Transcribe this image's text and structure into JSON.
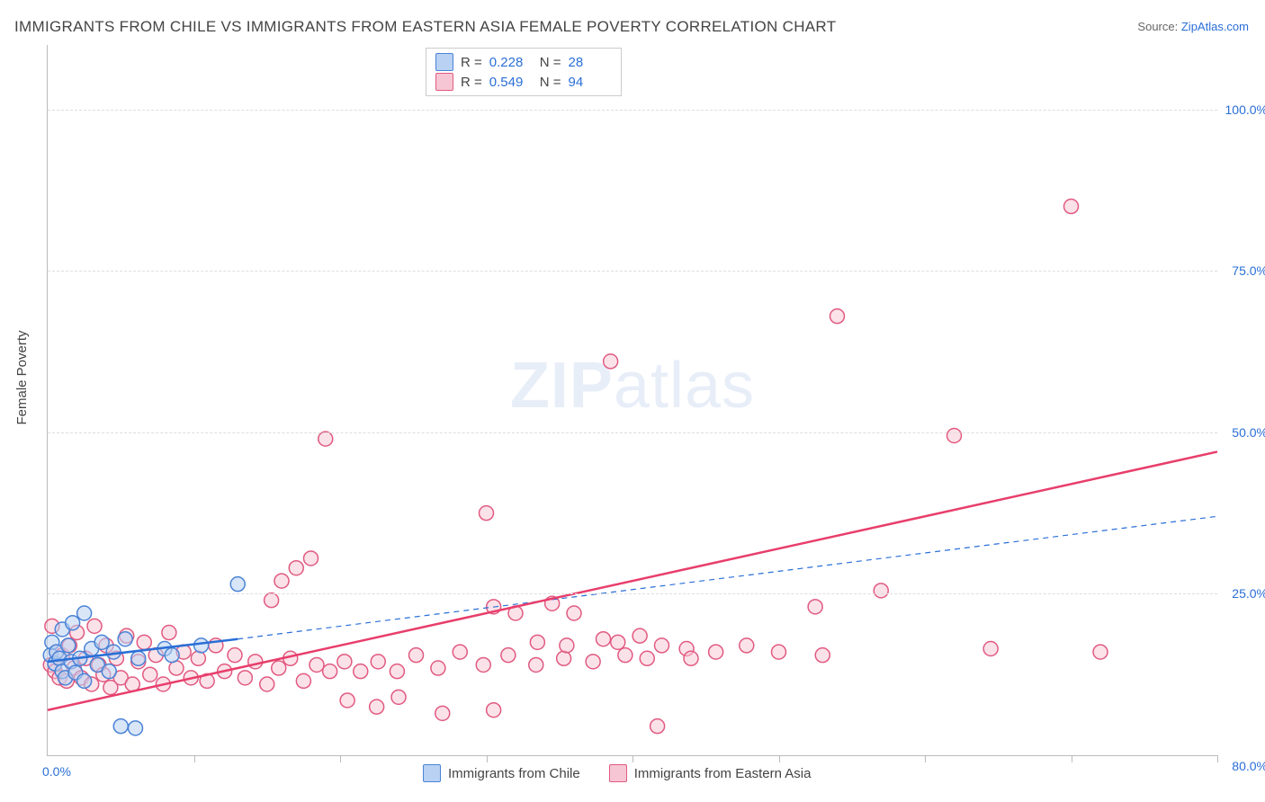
{
  "title": "IMMIGRANTS FROM CHILE VS IMMIGRANTS FROM EASTERN ASIA FEMALE POVERTY CORRELATION CHART",
  "source_label": "Source:",
  "source_value": "ZipAtlas.com",
  "y_axis_label": "Female Poverty",
  "watermark": {
    "part1": "ZIP",
    "part2": "atlas"
  },
  "x_origin_label": "0.0%",
  "x_max_label": "80.0%",
  "bottom_legend": {
    "series1": "Immigrants from Chile",
    "series2": "Immigrants from Eastern Asia"
  },
  "chart": {
    "type": "scatter",
    "xlim": [
      0,
      80
    ],
    "ylim": [
      0,
      110
    ],
    "y_ticks": [
      25,
      50,
      75,
      100
    ],
    "y_tick_labels": [
      "25.0%",
      "50.0%",
      "75.0%",
      "100.0%"
    ],
    "x_ticks": [
      10,
      20,
      30,
      40,
      50,
      60,
      70,
      80
    ],
    "marker_radius": 8,
    "marker_stroke_width": 1.5,
    "background_color": "#ffffff",
    "grid_color": "#dddddd",
    "series": [
      {
        "name": "Immigrants from Chile",
        "fill": "#b9d1f3",
        "stroke": "#4a83d6",
        "fill_opacity": 0.55,
        "R": "0.228",
        "N": "28",
        "trend_solid": {
          "x1": 0,
          "y1": 14.5,
          "x2": 13,
          "y2": 18,
          "color": "#2a6fd6",
          "width": 2.5
        },
        "trend_dashed": {
          "x1": 13,
          "y1": 18,
          "x2": 80,
          "y2": 37,
          "color": "#2a6fd6",
          "width": 1.2,
          "dash": "6,5"
        },
        "points": [
          [
            0.2,
            15.5
          ],
          [
            0.3,
            17.5
          ],
          [
            0.5,
            14.2
          ],
          [
            0.6,
            16.0
          ],
          [
            0.8,
            15.0
          ],
          [
            1.0,
            13.0
          ],
          [
            1.0,
            19.5
          ],
          [
            1.2,
            12.0
          ],
          [
            1.4,
            17.0
          ],
          [
            1.6,
            14.5
          ],
          [
            1.7,
            20.5
          ],
          [
            1.9,
            12.8
          ],
          [
            2.2,
            15.0
          ],
          [
            2.5,
            22.0
          ],
          [
            2.5,
            11.5
          ],
          [
            3.0,
            16.5
          ],
          [
            3.4,
            14.0
          ],
          [
            3.7,
            17.5
          ],
          [
            4.2,
            13.0
          ],
          [
            4.5,
            16.0
          ],
          [
            5.0,
            4.5
          ],
          [
            5.3,
            18.0
          ],
          [
            6.0,
            4.2
          ],
          [
            6.2,
            15.0
          ],
          [
            8.0,
            16.5
          ],
          [
            8.5,
            15.5
          ],
          [
            10.5,
            17.0
          ],
          [
            13.0,
            26.5
          ]
        ]
      },
      {
        "name": "Immigrants from Eastern Asia",
        "fill": "#f7c6d4",
        "stroke": "#e15a80",
        "fill_opacity": 0.5,
        "R": "0.549",
        "N": "94",
        "trend_solid": {
          "x1": 0,
          "y1": 7,
          "x2": 80,
          "y2": 47,
          "color": "#e83e6b",
          "width": 2.5
        },
        "points": [
          [
            0.2,
            14.0
          ],
          [
            0.3,
            20.0
          ],
          [
            0.5,
            13.0
          ],
          [
            0.6,
            16.0
          ],
          [
            0.8,
            12.0
          ],
          [
            1.0,
            15.5
          ],
          [
            1.3,
            11.5
          ],
          [
            1.5,
            17.0
          ],
          [
            1.8,
            13.5
          ],
          [
            2.0,
            19.0
          ],
          [
            2.3,
            12.0
          ],
          [
            2.6,
            15.0
          ],
          [
            3.0,
            11.0
          ],
          [
            3.2,
            20.0
          ],
          [
            3.5,
            14.0
          ],
          [
            3.8,
            12.5
          ],
          [
            4.0,
            17.0
          ],
          [
            4.3,
            10.5
          ],
          [
            4.7,
            15.0
          ],
          [
            5.0,
            12.0
          ],
          [
            5.4,
            18.5
          ],
          [
            5.8,
            11.0
          ],
          [
            6.2,
            14.5
          ],
          [
            6.6,
            17.5
          ],
          [
            7.0,
            12.5
          ],
          [
            7.4,
            15.5
          ],
          [
            7.9,
            11.0
          ],
          [
            8.3,
            19.0
          ],
          [
            8.8,
            13.5
          ],
          [
            9.3,
            16.0
          ],
          [
            9.8,
            12.0
          ],
          [
            10.3,
            15.0
          ],
          [
            10.9,
            11.5
          ],
          [
            11.5,
            17.0
          ],
          [
            12.1,
            13.0
          ],
          [
            12.8,
            15.5
          ],
          [
            13.5,
            12.0
          ],
          [
            14.2,
            14.5
          ],
          [
            15.0,
            11.0
          ],
          [
            15.3,
            24.0
          ],
          [
            15.8,
            13.5
          ],
          [
            16.0,
            27.0
          ],
          [
            16.6,
            15.0
          ],
          [
            17.0,
            29.0
          ],
          [
            17.5,
            11.5
          ],
          [
            18.0,
            30.5
          ],
          [
            18.4,
            14.0
          ],
          [
            19.0,
            49.0
          ],
          [
            19.3,
            13.0
          ],
          [
            20.3,
            14.5
          ],
          [
            20.5,
            8.5
          ],
          [
            21.4,
            13.0
          ],
          [
            22.5,
            7.5
          ],
          [
            22.6,
            14.5
          ],
          [
            23.9,
            13.0
          ],
          [
            24.0,
            9.0
          ],
          [
            25.2,
            15.5
          ],
          [
            26.7,
            13.5
          ],
          [
            27.0,
            6.5
          ],
          [
            28.2,
            16.0
          ],
          [
            29.8,
            14.0
          ],
          [
            30.0,
            37.5
          ],
          [
            30.5,
            7.0
          ],
          [
            30.5,
            23.0
          ],
          [
            31.5,
            15.5
          ],
          [
            32.0,
            22.0
          ],
          [
            33.4,
            14.0
          ],
          [
            33.5,
            17.5
          ],
          [
            34.5,
            23.5
          ],
          [
            35.3,
            15.0
          ],
          [
            35.5,
            17.0
          ],
          [
            36.0,
            22.0
          ],
          [
            37.3,
            14.5
          ],
          [
            38.0,
            18.0
          ],
          [
            38.5,
            61.0
          ],
          [
            39.0,
            17.5
          ],
          [
            39.5,
            15.5
          ],
          [
            40.5,
            18.5
          ],
          [
            41.0,
            15.0
          ],
          [
            41.7,
            4.5
          ],
          [
            42.0,
            17.0
          ],
          [
            43.7,
            16.5
          ],
          [
            44.0,
            15.0
          ],
          [
            45.7,
            16.0
          ],
          [
            47.8,
            17.0
          ],
          [
            50.0,
            16.0
          ],
          [
            52.5,
            23.0
          ],
          [
            53.0,
            15.5
          ],
          [
            54.0,
            68.0
          ],
          [
            57.0,
            25.5
          ],
          [
            62.0,
            49.5
          ],
          [
            64.5,
            16.5
          ],
          [
            70.0,
            85.0
          ],
          [
            72.0,
            16.0
          ]
        ]
      }
    ]
  }
}
